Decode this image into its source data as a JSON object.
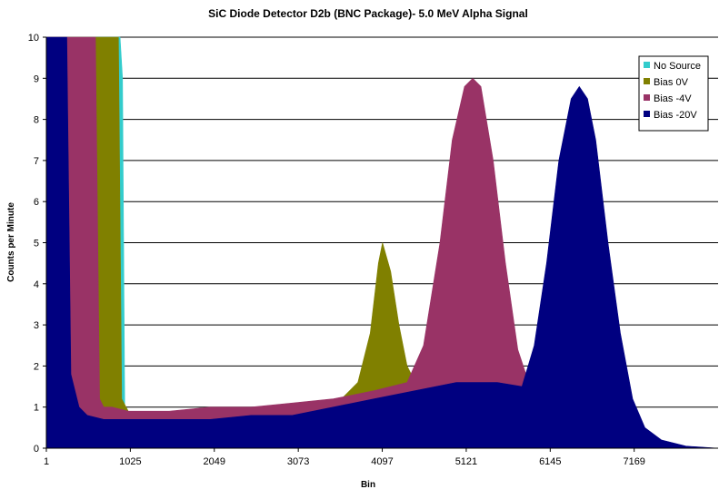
{
  "chart_data": {
    "type": "area",
    "title": "SiC Diode Detector D2b (BNC Package)- 5.0 MeV Alpha Signal",
    "xlabel": "Bin",
    "ylabel": "Counts per Minute",
    "xlim": [
      1,
      8192
    ],
    "ylim": [
      0,
      10
    ],
    "x_ticks": [
      "1",
      "1025",
      "2049",
      "3073",
      "4097",
      "5121",
      "6145",
      "7169"
    ],
    "y_ticks": [
      "0",
      "1",
      "2",
      "3",
      "4",
      "5",
      "6",
      "7",
      "8",
      "9",
      "10"
    ],
    "grid": "horizontal",
    "legend_position": "top-right",
    "series": [
      {
        "name": "No Source",
        "color": "#33cccc",
        "x": [
          1,
          300,
          500,
          700,
          850,
          900,
          930,
          960,
          1000,
          2000,
          3000,
          4000,
          5000,
          6000,
          7000,
          8192
        ],
        "y": [
          10,
          10,
          10,
          10,
          10,
          10,
          9,
          0.1,
          0,
          0,
          0,
          0,
          0,
          0,
          0,
          0
        ]
      },
      {
        "name": "Bias 0V",
        "color": "#808000",
        "x": [
          1,
          300,
          500,
          700,
          850,
          880,
          920,
          1000,
          1500,
          2000,
          2500,
          3000,
          3300,
          3600,
          3800,
          3950,
          4050,
          4100,
          4200,
          4300,
          4400,
          4600,
          4800,
          5000,
          6000,
          7000,
          8192
        ],
        "y": [
          10,
          10,
          10,
          10,
          10,
          10,
          1.2,
          0.9,
          0.8,
          0.8,
          0.9,
          0.9,
          1.0,
          1.2,
          1.6,
          2.8,
          4.5,
          5.0,
          4.3,
          3.0,
          2.0,
          1.2,
          0.8,
          0.4,
          0.1,
          0,
          0
        ]
      },
      {
        "name": "Bias -4V",
        "color": "#993366",
        "x": [
          1,
          300,
          400,
          600,
          650,
          700,
          800,
          1000,
          1500,
          2000,
          2500,
          3000,
          3500,
          4000,
          4400,
          4600,
          4800,
          4950,
          5100,
          5200,
          5300,
          5450,
          5600,
          5750,
          5900,
          6100,
          6500,
          7000,
          8192
        ],
        "y": [
          10,
          10,
          10,
          10,
          1.2,
          1.0,
          1.0,
          0.9,
          0.9,
          1.0,
          1.0,
          1.1,
          1.2,
          1.4,
          1.6,
          2.5,
          5.0,
          7.5,
          8.8,
          9.0,
          8.8,
          7.0,
          4.5,
          2.4,
          1.5,
          0.8,
          0.3,
          0.1,
          0
        ]
      },
      {
        "name": "Bias -20V",
        "color": "#000080",
        "x": [
          1,
          200,
          250,
          300,
          400,
          500,
          700,
          1000,
          1500,
          2000,
          2500,
          3000,
          3500,
          4000,
          4500,
          5000,
          5500,
          5800,
          5950,
          6100,
          6250,
          6400,
          6500,
          6600,
          6700,
          6850,
          7000,
          7150,
          7300,
          7500,
          7800,
          8192
        ],
        "y": [
          10,
          10,
          10,
          1.8,
          1.0,
          0.8,
          0.7,
          0.7,
          0.7,
          0.7,
          0.8,
          0.8,
          1.0,
          1.2,
          1.4,
          1.6,
          1.6,
          1.5,
          2.5,
          4.5,
          7.0,
          8.5,
          8.8,
          8.5,
          7.5,
          5.0,
          2.8,
          1.2,
          0.5,
          0.2,
          0.05,
          0
        ]
      }
    ]
  }
}
